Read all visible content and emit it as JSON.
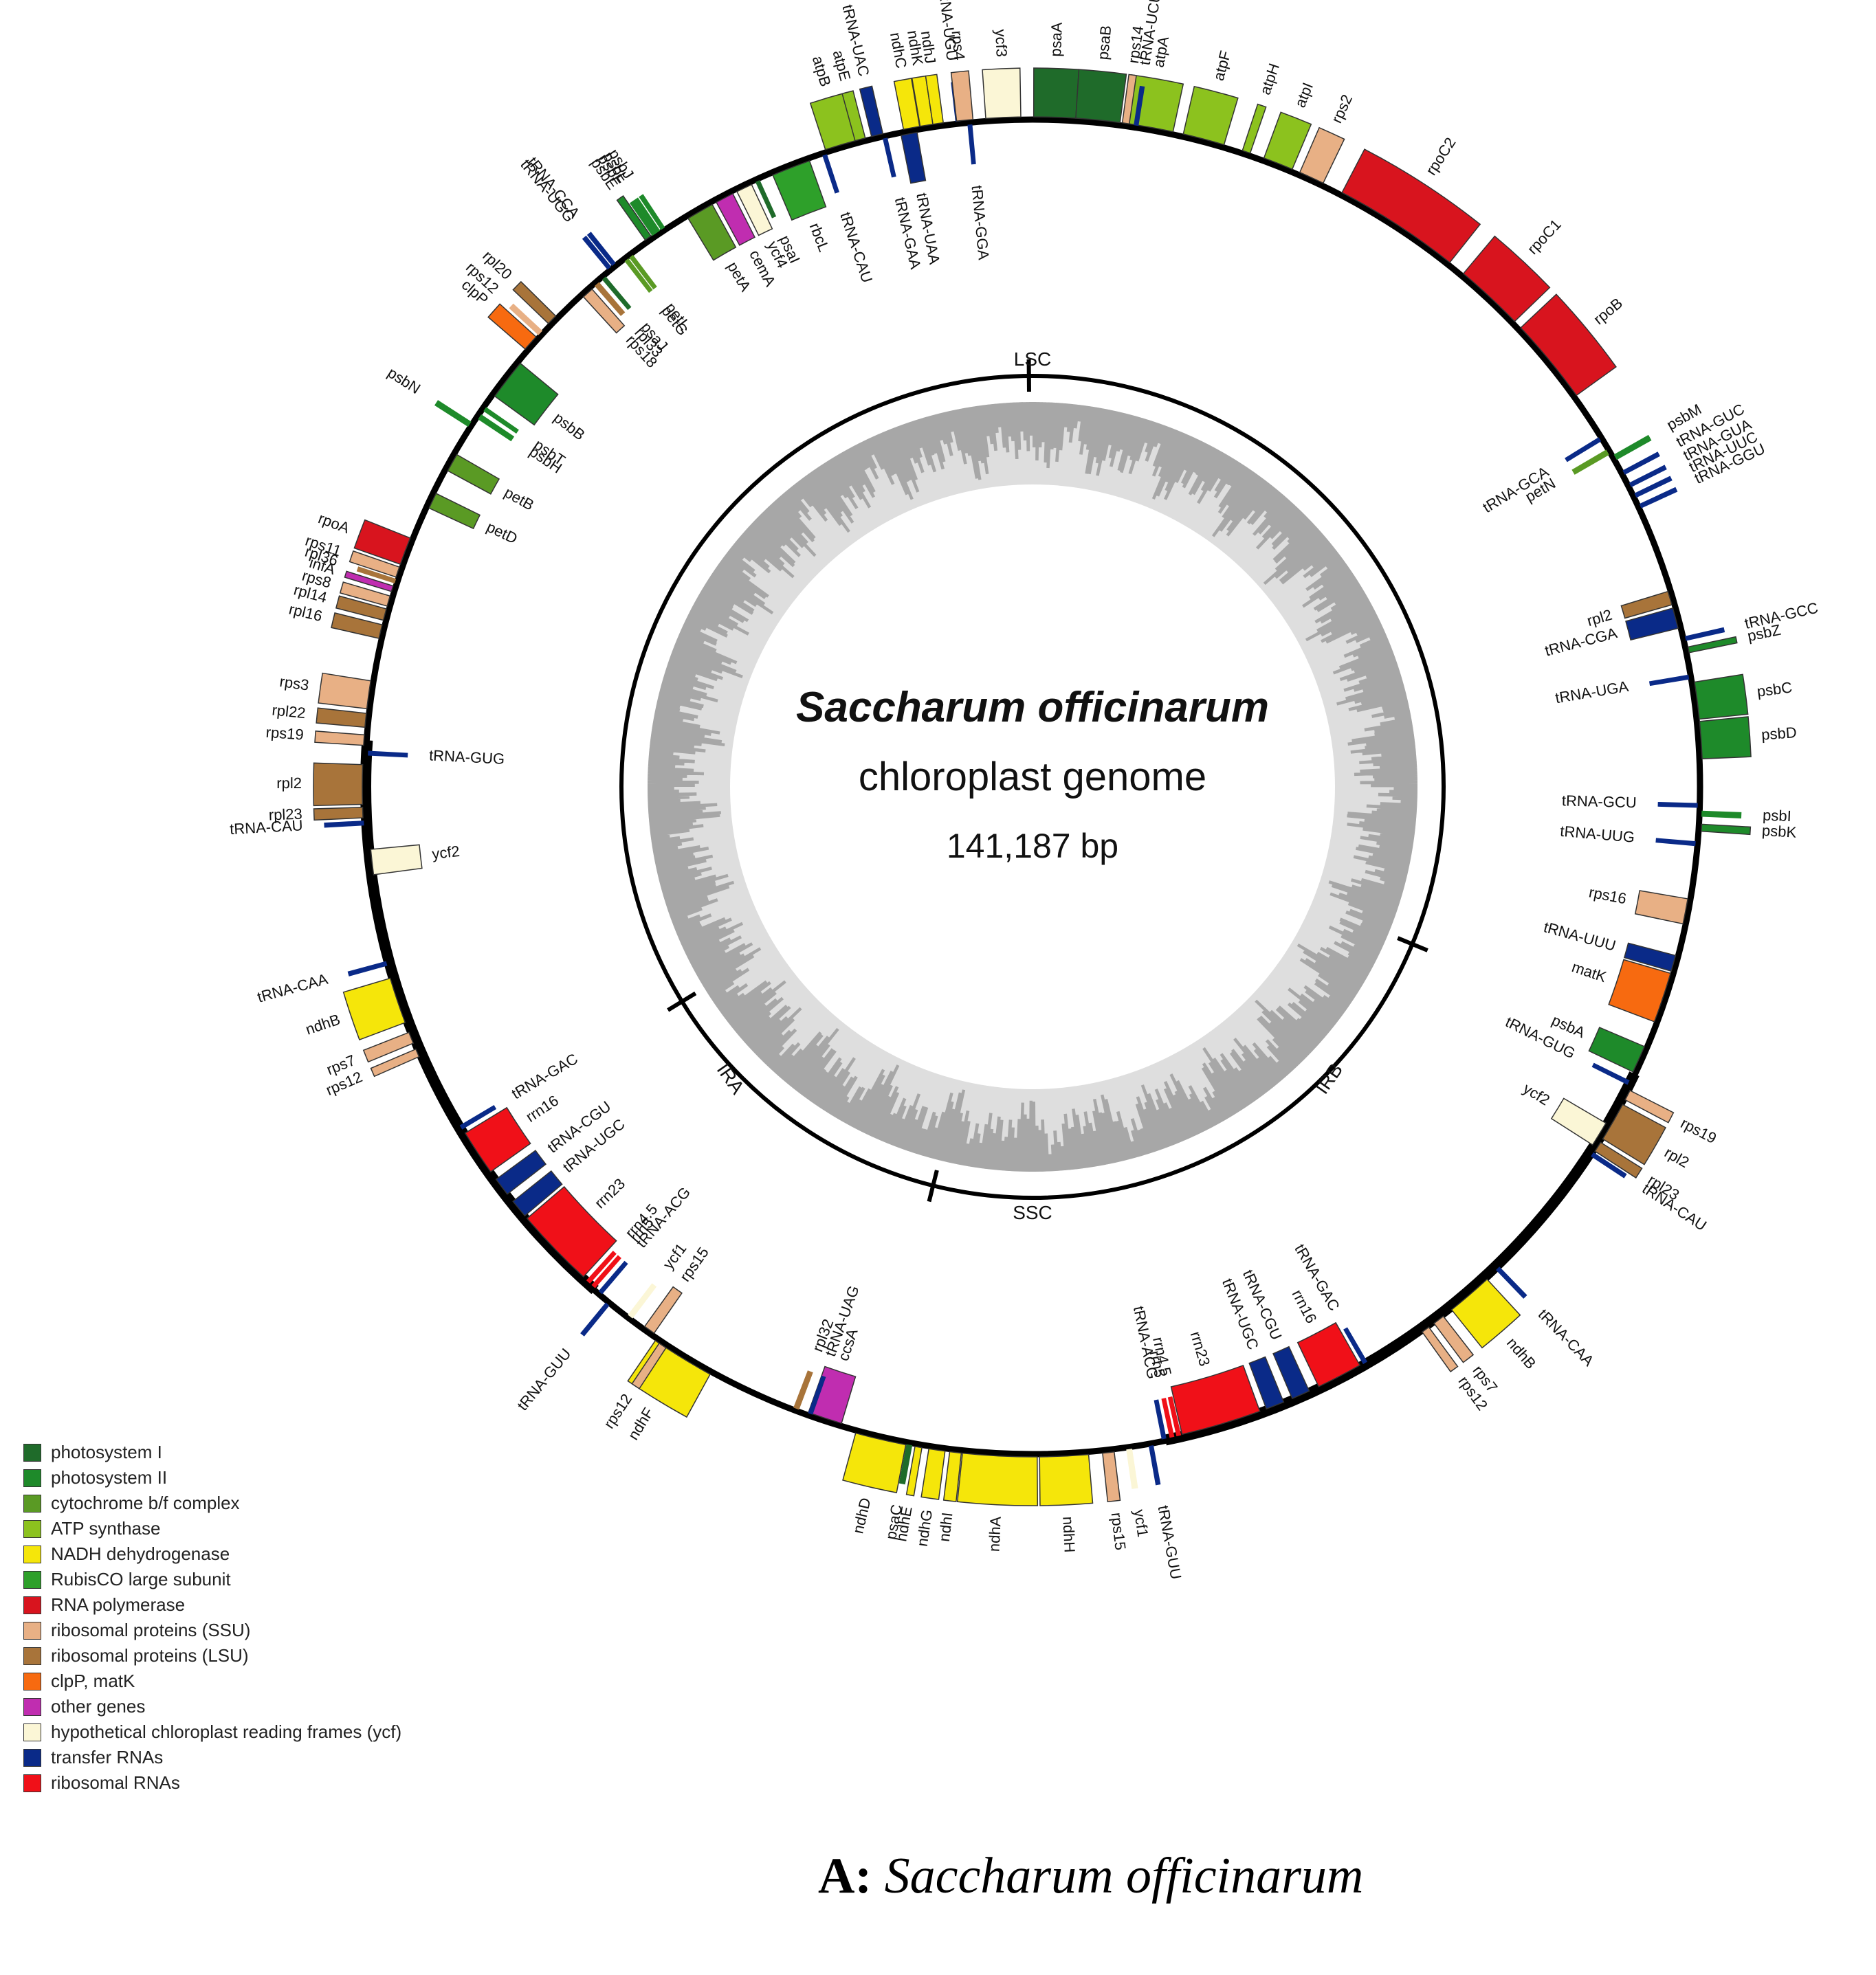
{
  "title": {
    "species": "Saccharum  officinarum",
    "subtitle": "chloroplast genome",
    "size": "141,187 bp"
  },
  "regions": {
    "lsc": "LSC",
    "ira": "IRA",
    "irb": "IRB",
    "ssc": "SSC"
  },
  "caption": {
    "prefix": "A: ",
    "species": "Saccharum officinarum"
  },
  "colors": {
    "photosystem_I": "#1f6b2a",
    "photosystem_II": "#1e8a2a",
    "cytochrome": "#5a9a24",
    "atp": "#8cc21e",
    "ndh": "#f5e60a",
    "rubisco": "#2ea02a",
    "rna_pol": "#d8141e",
    "rps": "#e8b085",
    "rpl": "#a8743a",
    "clp_mat": "#f76a10",
    "other": "#c02db0",
    "ycf": "#fbf6d6",
    "trna": "#0a2a88",
    "rrna": "#f01018"
  },
  "legend": [
    {
      "label": "photosystem I",
      "color": "#1f6b2a"
    },
    {
      "label": "photosystem II",
      "color": "#1e8a2a"
    },
    {
      "label": "cytochrome b/f complex",
      "color": "#5a9a24"
    },
    {
      "label": "ATP synthase",
      "color": "#8cc21e"
    },
    {
      "label": "NADH dehydrogenase",
      "color": "#f5e60a"
    },
    {
      "label": "RubisCO large subunit",
      "color": "#2ea02a"
    },
    {
      "label": "RNA polymerase",
      "color": "#d8141e"
    },
    {
      "label": "ribosomal proteins (SSU)",
      "color": "#e8b085"
    },
    {
      "label": "ribosomal proteins (LSU)",
      "color": "#a8743a"
    },
    {
      "label": "clpP, matK",
      "color": "#f76a10"
    },
    {
      "label": "other genes",
      "color": "#c02db0"
    },
    {
      "label": "hypothetical chloroplast reading frames (ycf)",
      "color": "#fbf6d6"
    },
    {
      "label": "transfer RNAs",
      "color": "#0a2a88"
    },
    {
      "label": "ribosomal RNAs",
      "color": "#f01018"
    }
  ],
  "genes": [
    {
      "name": "atpA",
      "angle": 10,
      "span": 4.2,
      "side": "out",
      "color": "#8cc21e"
    },
    {
      "name": "atpF",
      "angle": 14.8,
      "span": 3.6,
      "side": "out",
      "color": "#8cc21e"
    },
    {
      "name": "atpH",
      "angle": 18.6,
      "span": 0.7,
      "side": "out",
      "color": "#8cc21e"
    },
    {
      "name": "atpI",
      "angle": 21.5,
      "span": 2.6,
      "side": "out",
      "color": "#8cc21e"
    },
    {
      "name": "rps2",
      "angle": 24.6,
      "span": 2.2,
      "side": "out",
      "color": "#e8b085"
    },
    {
      "name": "rpoC2",
      "angle": 33,
      "span": 11,
      "side": "out",
      "color": "#d8141e"
    },
    {
      "name": "rpoC1",
      "angle": 43,
      "span": 6,
      "side": "out",
      "color": "#d8141e"
    },
    {
      "name": "rpoB",
      "angle": 50.5,
      "span": 7.5,
      "side": "out",
      "color": "#d8141e"
    },
    {
      "name": "tRNA-GUC",
      "angle": 62,
      "span": 0.3,
      "side": "out",
      "color": "#0a2a88"
    },
    {
      "name": "tRNA-GUA",
      "angle": 63.2,
      "span": 0.3,
      "side": "out",
      "color": "#0a2a88"
    },
    {
      "name": "tRNA-UUC",
      "angle": 64.2,
      "span": 0.3,
      "side": "out",
      "color": "#0a2a88"
    },
    {
      "name": "tRNA-GGU",
      "angle": 65.2,
      "span": 0.3,
      "side": "out",
      "color": "#0a2a88"
    },
    {
      "name": "psbM",
      "angle": 60.5,
      "span": 0.4,
      "side": "out",
      "color": "#1e8a2a"
    },
    {
      "name": "tRNA-GCA",
      "angle": 58.5,
      "span": 0.3,
      "side": "in",
      "color": "#0a2a88"
    },
    {
      "name": "petN",
      "angle": 59.8,
      "span": 0.4,
      "side": "in",
      "color": "#5a9a24"
    },
    {
      "name": "rpl2",
      "angle": 73.5,
      "span": 1.2,
      "side": "in",
      "color": "#a8743a"
    },
    {
      "name": "tRNA-CGA",
      "angle": 75.3,
      "span": 1.8,
      "side": "in",
      "color": "#0a2a88"
    },
    {
      "name": "tRNA-GCC",
      "angle": 77.2,
      "span": 0.3,
      "side": "out",
      "color": "#0a2a88"
    },
    {
      "name": "psbZ",
      "angle": 78.2,
      "span": 0.5,
      "side": "out",
      "color": "#1e8a2a"
    },
    {
      "name": "tRNA-UGA",
      "angle": 80.5,
      "span": 0.3,
      "side": "in",
      "color": "#0a2a88"
    },
    {
      "name": "psbC",
      "angle": 82.6,
      "span": 3.2,
      "side": "out",
      "color": "#1e8a2a"
    },
    {
      "name": "psbD",
      "angle": 86.0,
      "span": 3.2,
      "side": "out",
      "color": "#1e8a2a"
    },
    {
      "name": "tRNA-GCU",
      "angle": 91.6,
      "span": 0.3,
      "side": "in",
      "color": "#0a2a88"
    },
    {
      "name": "psbI",
      "angle": 92.3,
      "span": 0.4,
      "side": "out",
      "color": "#1e8a2a"
    },
    {
      "name": "psbK",
      "angle": 93.5,
      "span": 0.6,
      "side": "out",
      "color": "#1e8a2a"
    },
    {
      "name": "tRNA-UUG",
      "angle": 94.9,
      "span": 0.3,
      "side": "in",
      "color": "#0a2a88"
    },
    {
      "name": "rps16",
      "angle": 100.8,
      "span": 2.2,
      "side": "in",
      "color": "#e8b085"
    },
    {
      "name": "tRNA-UUU",
      "angle": 105.4,
      "span": 1.4,
      "side": "in",
      "color": "#0a2a88"
    },
    {
      "name": "matK",
      "angle": 108.5,
      "span": 4.4,
      "side": "in",
      "color": "#f76a10"
    },
    {
      "name": "psbA",
      "angle": 114.2,
      "span": 2.4,
      "side": "in",
      "color": "#1e8a2a"
    },
    {
      "name": "tRNA-GUG",
      "angle": 116.4,
      "span": 0.3,
      "side": "in",
      "color": "#0a2a88"
    },
    {
      "name": "rps19",
      "angle": 117.4,
      "span": 0.9,
      "side": "out",
      "color": "#e8b085"
    },
    {
      "name": "rpl2",
      "angle": 120.0,
      "span": 3.4,
      "side": "out",
      "color": "#a8743a"
    },
    {
      "name": "rpl23",
      "angle": 122.5,
      "span": 0.9,
      "side": "out",
      "color": "#a8743a"
    },
    {
      "name": "tRNA-CAU",
      "angle": 123.3,
      "span": 0.3,
      "side": "out",
      "color": "#0a2a88"
    },
    {
      "name": "ycf2",
      "angle": 121.5,
      "span": 2.2,
      "side": "in",
      "color": "#fbf6d6"
    },
    {
      "name": "tRNA-CAA",
      "angle": 136.0,
      "span": 0.3,
      "side": "out",
      "color": "#0a2a88"
    },
    {
      "name": "ndhB",
      "angle": 139.3,
      "span": 4.0,
      "side": "out",
      "color": "#f5e60a"
    },
    {
      "name": "rps7",
      "angle": 142.7,
      "span": 1.0,
      "side": "out",
      "color": "#e8b085"
    },
    {
      "name": "rps12",
      "angle": 144.1,
      "span": 0.7,
      "side": "out",
      "color": "#e8b085"
    },
    {
      "name": "tRNA-GAC",
      "angle": 150.0,
      "span": 0.3,
      "side": "in",
      "color": "#0a2a88"
    },
    {
      "name": "rrn16",
      "angle": 152.5,
      "span": 4.0,
      "side": "in",
      "color": "#f01018"
    },
    {
      "name": "tRNA-CGU",
      "angle": 156.2,
      "span": 1.6,
      "side": "in",
      "color": "#0a2a88"
    },
    {
      "name": "tRNA-UGC",
      "angle": 158.6,
      "span": 1.6,
      "side": "in",
      "color": "#0a2a88"
    },
    {
      "name": "rrn23",
      "angle": 163.5,
      "span": 7.0,
      "side": "in",
      "color": "#f01018"
    },
    {
      "name": "rrn4.5",
      "angle": 167.3,
      "span": 0.3,
      "side": "in",
      "color": "#f01018"
    },
    {
      "name": "rrn5",
      "angle": 167.9,
      "span": 0.3,
      "side": "in",
      "color": "#f01018"
    },
    {
      "name": "tRNA-ACG",
      "angle": 168.6,
      "span": 0.3,
      "side": "in",
      "color": "#0a2a88"
    },
    {
      "name": "tRNA-GUU",
      "angle": 169.8,
      "span": 0.3,
      "side": "out",
      "color": "#0a2a88"
    },
    {
      "name": "ycf1",
      "angle": 171.7,
      "span": 0.4,
      "side": "out",
      "color": "#fbf6d6"
    },
    {
      "name": "rps15",
      "angle": 173.5,
      "span": 1.0,
      "side": "out",
      "color": "#e8b085"
    },
    {
      "name": "ndhH",
      "angle": 177.3,
      "span": 4.2,
      "side": "out",
      "color": "#f5e60a"
    },
    {
      "name": "ndhA",
      "angle": 182.8,
      "span": 6.4,
      "side": "out",
      "color": "#f5e60a"
    },
    {
      "name": "ndhI",
      "angle": 186.6,
      "span": 1.0,
      "side": "out",
      "color": "#f5e60a"
    },
    {
      "name": "ndhG",
      "angle": 188.2,
      "span": 1.4,
      "side": "out",
      "color": "#f5e60a"
    },
    {
      "name": "ndhE",
      "angle": 189.8,
      "span": 0.6,
      "side": "out",
      "color": "#f5e60a"
    },
    {
      "name": "psaC",
      "angle": 190.6,
      "span": 0.4,
      "side": "out",
      "color": "#1f6b2a"
    },
    {
      "name": "ndhD",
      "angle": 193.1,
      "span": 4.4,
      "side": "out",
      "color": "#f5e60a"
    },
    {
      "name": "ccsA",
      "angle": 198.2,
      "span": 3.0,
      "side": "in",
      "color": "#c02db0"
    },
    {
      "name": "tRNA-UAG",
      "angle": 199.5,
      "span": 0.3,
      "side": "in",
      "color": "#0a2a88"
    },
    {
      "name": "rpl32",
      "angle": 200.8,
      "span": 0.4,
      "side": "in",
      "color": "#a8743a"
    },
    {
      "name": "ndhF",
      "angle": 211.5,
      "span": 5.5,
      "side": "out",
      "color": "#f5e60a"
    },
    {
      "name": "rps15",
      "angle": 215.2,
      "span": 1.0,
      "side": "in",
      "color": "#e8b085"
    },
    {
      "name": "ycf1",
      "angle": 217.2,
      "span": 0.4,
      "side": "in",
      "color": "#fbf6d6"
    },
    {
      "name": "tRNA-GUU",
      "angle": 219.4,
      "span": 0.3,
      "side": "out",
      "color": "#0a2a88"
    },
    {
      "name": "tRNA-ACG",
      "angle": 220.5,
      "span": 0.3,
      "side": "in",
      "color": "#0a2a88"
    },
    {
      "name": "rrn5",
      "angle": 221.3,
      "span": 0.3,
      "side": "in",
      "color": "#f01018"
    },
    {
      "name": "rrn4.5",
      "angle": 221.9,
      "span": 0.3,
      "side": "in",
      "color": "#f01018"
    },
    {
      "name": "rrn23",
      "angle": 226.0,
      "span": 7.0,
      "side": "in",
      "color": "#f01018"
    },
    {
      "name": "tRNA-UGC",
      "angle": 230.6,
      "span": 1.6,
      "side": "in",
      "color": "#0a2a88"
    },
    {
      "name": "tRNA-CGU",
      "angle": 233.0,
      "span": 1.6,
      "side": "in",
      "color": "#0a2a88"
    },
    {
      "name": "rrn16",
      "angle": 236.6,
      "span": 4.0,
      "side": "in",
      "color": "#f01018"
    },
    {
      "name": "tRNA-GAC",
      "angle": 239.2,
      "span": 0.3,
      "side": "in",
      "color": "#0a2a88"
    },
    {
      "name": "rps12",
      "angle": 213.5,
      "span": 0.7,
      "side": "out",
      "color": "#e8b085"
    },
    {
      "name": "rps12",
      "angle": 246.6,
      "span": 0.7,
      "side": "out",
      "color": "#e8b085"
    },
    {
      "name": "rps7",
      "angle": 248.0,
      "span": 1.0,
      "side": "out",
      "color": "#e8b085"
    },
    {
      "name": "ndhB",
      "angle": 251.4,
      "span": 4.0,
      "side": "out",
      "color": "#f5e60a"
    },
    {
      "name": "tRNA-CAA",
      "angle": 254.7,
      "span": 0.3,
      "side": "out",
      "color": "#0a2a88"
    },
    {
      "name": "ycf2",
      "angle": 263.5,
      "span": 2.2,
      "side": "in",
      "color": "#fbf6d6"
    },
    {
      "name": "tRNA-CAU",
      "angle": 266.9,
      "span": 0.3,
      "side": "out",
      "color": "#0a2a88"
    },
    {
      "name": "rpl23",
      "angle": 267.8,
      "span": 0.9,
      "side": "out",
      "color": "#a8743a"
    },
    {
      "name": "rpl2",
      "angle": 270.2,
      "span": 3.4,
      "side": "out",
      "color": "#a8743a"
    },
    {
      "name": "tRNA-GUG",
      "angle": 272.9,
      "span": 0.3,
      "side": "in",
      "color": "#0a2a88"
    },
    {
      "name": "rps19",
      "angle": 274.0,
      "span": 0.9,
      "side": "out",
      "color": "#e8b085"
    },
    {
      "name": "rpl22",
      "angle": 275.7,
      "span": 1.2,
      "side": "out",
      "color": "#a8743a"
    },
    {
      "name": "rps3",
      "angle": 277.9,
      "span": 2.4,
      "side": "out",
      "color": "#e8b085"
    },
    {
      "name": "rpl16",
      "angle": 283.4,
      "span": 1.2,
      "side": "out",
      "color": "#a8743a"
    },
    {
      "name": "rpl14",
      "angle": 284.9,
      "span": 1.0,
      "side": "out",
      "color": "#a8743a"
    },
    {
      "name": "rps8",
      "angle": 286.1,
      "span": 0.9,
      "side": "out",
      "color": "#e8b085"
    },
    {
      "name": "infA",
      "angle": 287.2,
      "span": 0.5,
      "side": "out",
      "color": "#c02db0"
    },
    {
      "name": "rpl36",
      "angle": 287.9,
      "span": 0.3,
      "side": "out",
      "color": "#a8743a"
    },
    {
      "name": "rps11",
      "angle": 288.7,
      "span": 0.9,
      "side": "out",
      "color": "#e8b085"
    },
    {
      "name": "rpoA",
      "angle": 290.6,
      "span": 2.4,
      "side": "out",
      "color": "#d8141e"
    },
    {
      "name": "petD",
      "angle": 295.5,
      "span": 1.4,
      "side": "in",
      "color": "#5a9a24"
    },
    {
      "name": "petB",
      "angle": 299.2,
      "span": 1.6,
      "side": "in",
      "color": "#5a9a24"
    },
    {
      "name": "psbN",
      "angle": 302.8,
      "span": 0.4,
      "side": "out",
      "color": "#1e8a2a"
    },
    {
      "name": "psbH",
      "angle": 303.8,
      "span": 0.4,
      "side": "in",
      "color": "#1e8a2a"
    },
    {
      "name": "psbT",
      "angle": 304.6,
      "span": 0.3,
      "side": "in",
      "color": "#1e8a2a"
    },
    {
      "name": "psbB",
      "angle": 307.8,
      "span": 3.6,
      "side": "in",
      "color": "#1e8a2a"
    },
    {
      "name": "clpP",
      "angle": 311.5,
      "span": 1.4,
      "side": "out",
      "color": "#f76a10"
    },
    {
      "name": "rps12",
      "angle": 312.7,
      "span": 0.4,
      "side": "out",
      "color": "#e8b085"
    },
    {
      "name": "rpl20",
      "angle": 314.2,
      "span": 0.9,
      "side": "out",
      "color": "#a8743a"
    },
    {
      "name": "rps18",
      "angle": 318.0,
      "span": 1.0,
      "side": "in",
      "color": "#e8b085"
    },
    {
      "name": "rpl33",
      "angle": 319.1,
      "span": 0.4,
      "side": "in",
      "color": "#a8743a"
    },
    {
      "name": "psaJ",
      "angle": 319.9,
      "span": 0.3,
      "side": "in",
      "color": "#1f6b2a"
    },
    {
      "name": "tRNA-UGG",
      "angle": 320.8,
      "span": 0.3,
      "side": "out",
      "color": "#0a2a88"
    },
    {
      "name": "tRNA-CCA",
      "angle": 321.3,
      "span": 0.3,
      "side": "out",
      "color": "#0a2a88"
    },
    {
      "name": "petG",
      "angle": 322.4,
      "span": 0.3,
      "side": "in",
      "color": "#5a9a24"
    },
    {
      "name": "petL",
      "angle": 322.9,
      "span": 0.3,
      "side": "in",
      "color": "#5a9a24"
    },
    {
      "name": "psbE",
      "angle": 325.0,
      "span": 0.6,
      "side": "out",
      "color": "#1e8a2a"
    },
    {
      "name": "psbF",
      "angle": 325.6,
      "span": 0.3,
      "side": "out",
      "color": "#1e8a2a"
    },
    {
      "name": "psbL",
      "angle": 326.0,
      "span": 0.3,
      "side": "out",
      "color": "#1e8a2a"
    },
    {
      "name": "psbJ",
      "angle": 326.5,
      "span": 0.3,
      "side": "out",
      "color": "#1e8a2a"
    },
    {
      "name": "petA",
      "angle": 330.0,
      "span": 2.4,
      "side": "in",
      "color": "#5a9a24"
    },
    {
      "name": "cemA",
      "angle": 332.4,
      "span": 1.6,
      "side": "in",
      "color": "#c02db0"
    },
    {
      "name": "ycf4",
      "angle": 334.3,
      "span": 1.4,
      "side": "in",
      "color": "#fbf6d6"
    },
    {
      "name": "psaI",
      "angle": 335.6,
      "span": 0.3,
      "side": "in",
      "color": "#1f6b2a"
    },
    {
      "name": "rbcL",
      "angle": 338.7,
      "span": 3.4,
      "side": "in",
      "color": "#2ea02a"
    },
    {
      "name": "tRNA-CAU",
      "angle": 341.8,
      "span": 0.3,
      "side": "in",
      "color": "#0a2a88"
    },
    {
      "name": "atpB",
      "angle": 343.5,
      "span": 3.0,
      "side": "out",
      "color": "#8cc21e"
    },
    {
      "name": "atpE",
      "angle": 345.1,
      "span": 0.9,
      "side": "out",
      "color": "#8cc21e"
    },
    {
      "name": "tRNA-UAC",
      "angle": 346.6,
      "span": 1.0,
      "side": "out",
      "color": "#0a2a88"
    },
    {
      "name": "ndhC",
      "angle": 349.6,
      "span": 1.4,
      "side": "out",
      "color": "#f5e60a"
    },
    {
      "name": "ndhK",
      "angle": 350.9,
      "span": 1.1,
      "side": "out",
      "color": "#f5e60a"
    },
    {
      "name": "ndhJ",
      "angle": 351.9,
      "span": 0.9,
      "side": "out",
      "color": "#f5e60a"
    },
    {
      "name": "tRNA-GAA",
      "angle": 347.2,
      "span": 0.3,
      "side": "in",
      "color": "#0a2a88"
    },
    {
      "name": "tRNA-UAA",
      "angle": 349.3,
      "span": 1.4,
      "side": "in",
      "color": "#0a2a88"
    },
    {
      "name": "tRNA-UGU",
      "angle": 353.6,
      "span": 0.3,
      "side": "out",
      "color": "#0a2a88"
    },
    {
      "name": "tRNA-GGA",
      "angle": 354.6,
      "span": 0.3,
      "side": "in",
      "color": "#0a2a88"
    },
    {
      "name": "rps4",
      "angle": 354.2,
      "span": 1.4,
      "side": "out",
      "color": "#e8b085"
    },
    {
      "name": "ycf3",
      "angle": 357.5,
      "span": 3.0,
      "side": "out",
      "color": "#fbf6d6"
    },
    {
      "name": "psaA",
      "angle": 1.9,
      "span": 3.6,
      "side": "out",
      "color": "#1f6b2a"
    },
    {
      "name": "psaB",
      "angle": 5.6,
      "span": 3.8,
      "side": "out",
      "color": "#1f6b2a"
    },
    {
      "name": "rps14",
      "angle": 8.0,
      "span": 0.6,
      "side": "out",
      "color": "#e8b085"
    },
    {
      "name": "tRNA-UCU",
      "angle": 8.9,
      "span": 0.3,
      "side": "out",
      "color": "#0a2a88"
    }
  ]
}
